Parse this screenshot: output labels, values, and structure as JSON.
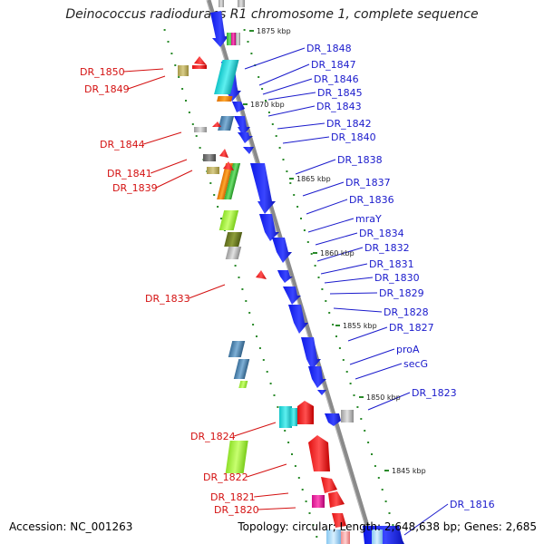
{
  "title": "Deinococcus radiodurans R1 chromosome 1, complete sequence",
  "footer": {
    "accession": "Accession: NC_001263",
    "summary": "Topology: circular; Length: 2,648,638 bp; Genes: 2,685"
  },
  "colors": {
    "axis": "#808080",
    "forward_label": "#1a1acc",
    "reverse_label": "#d41111",
    "tick": "#2a8a2a",
    "gene_blue": "#0b17e6"
  },
  "scale_ticks": [
    "1875 kbp",
    "1870 kbp",
    "1865 kbp",
    "1860 kbp",
    "1855 kbp",
    "1850 kbp",
    "1845 kbp"
  ],
  "reverse_genes": [
    "DR_1850",
    "DR_1849",
    "DR_1844",
    "DR_1841",
    "DR_1839",
    "DR_1833",
    "DR_1824",
    "DR_1822",
    "DR_1821",
    "DR_1820"
  ],
  "forward_genes": [
    "DR_1848",
    "DR_1847",
    "DR_1846",
    "DR_1845",
    "DR_1843",
    "DR_1842",
    "DR_1840",
    "DR_1838",
    "DR_1837",
    "DR_1836",
    "mraY",
    "DR_1834",
    "DR_1832",
    "DR_1831",
    "DR_1830",
    "DR_1829",
    "DR_1828",
    "DR_1827",
    "proA",
    "secG",
    "DR_1823",
    "DR_1816"
  ]
}
